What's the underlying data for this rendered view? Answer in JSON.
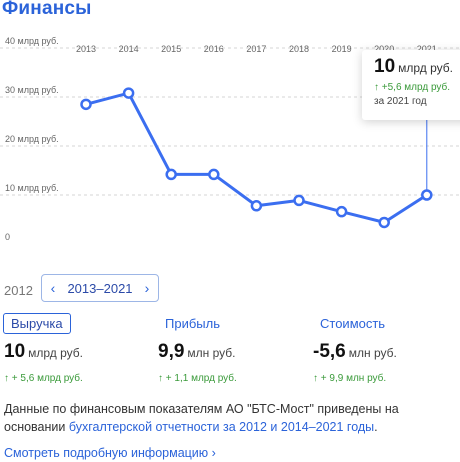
{
  "title": "Финансы",
  "chart_data": {
    "type": "line",
    "categories": [
      "2013",
      "2014",
      "2015",
      "2016",
      "2017",
      "2018",
      "2019",
      "2020",
      "2021"
    ],
    "values": [
      28.5,
      30.8,
      14.2,
      14.2,
      7.8,
      8.9,
      6.6,
      4.4,
      10.0
    ],
    "yticks": [
      "0",
      "10 млрд руб.",
      "20 млрд руб.",
      "30 млрд руб.",
      "40 млрд руб."
    ],
    "ylim": [
      0,
      40
    ],
    "grid": true,
    "line_color": "#3b6ef0",
    "highlighted": "2021"
  },
  "tooltip": {
    "value": "10",
    "unit": "млрд руб.",
    "delta": "↑ +5,6 млрд руб.",
    "period": "за 2021 год"
  },
  "range": {
    "prev_year": "2012",
    "label": "2013–2021",
    "prev_icon": "chevron-left-icon",
    "next_icon": "chevron-right-icon"
  },
  "metrics": [
    {
      "label": "Выручка",
      "value": "10",
      "unit": "млрд руб.",
      "delta": "↑ + 5,6 млрд руб."
    },
    {
      "label": "Прибыль",
      "value": "9,9",
      "unit": "млн руб.",
      "delta": "↑ + 1,1 млрд руб."
    },
    {
      "label": "Стоимость",
      "value": "-5,6",
      "unit": "млн руб.",
      "delta": "↑ + 9,9 млн руб."
    }
  ],
  "note": {
    "text_before": "Данные по финансовым показателям АО \"БТС-Мост\" приведены на основании ",
    "link": "бухгалтерской отчетности за 2012 и 2014–2021 годы",
    "text_after": "."
  },
  "more_link": "Смотреть подробную информацию",
  "more_icon": "chevron-right-icon",
  "colors": {
    "accent": "#2b63d9",
    "positive": "#3a9a3a"
  }
}
